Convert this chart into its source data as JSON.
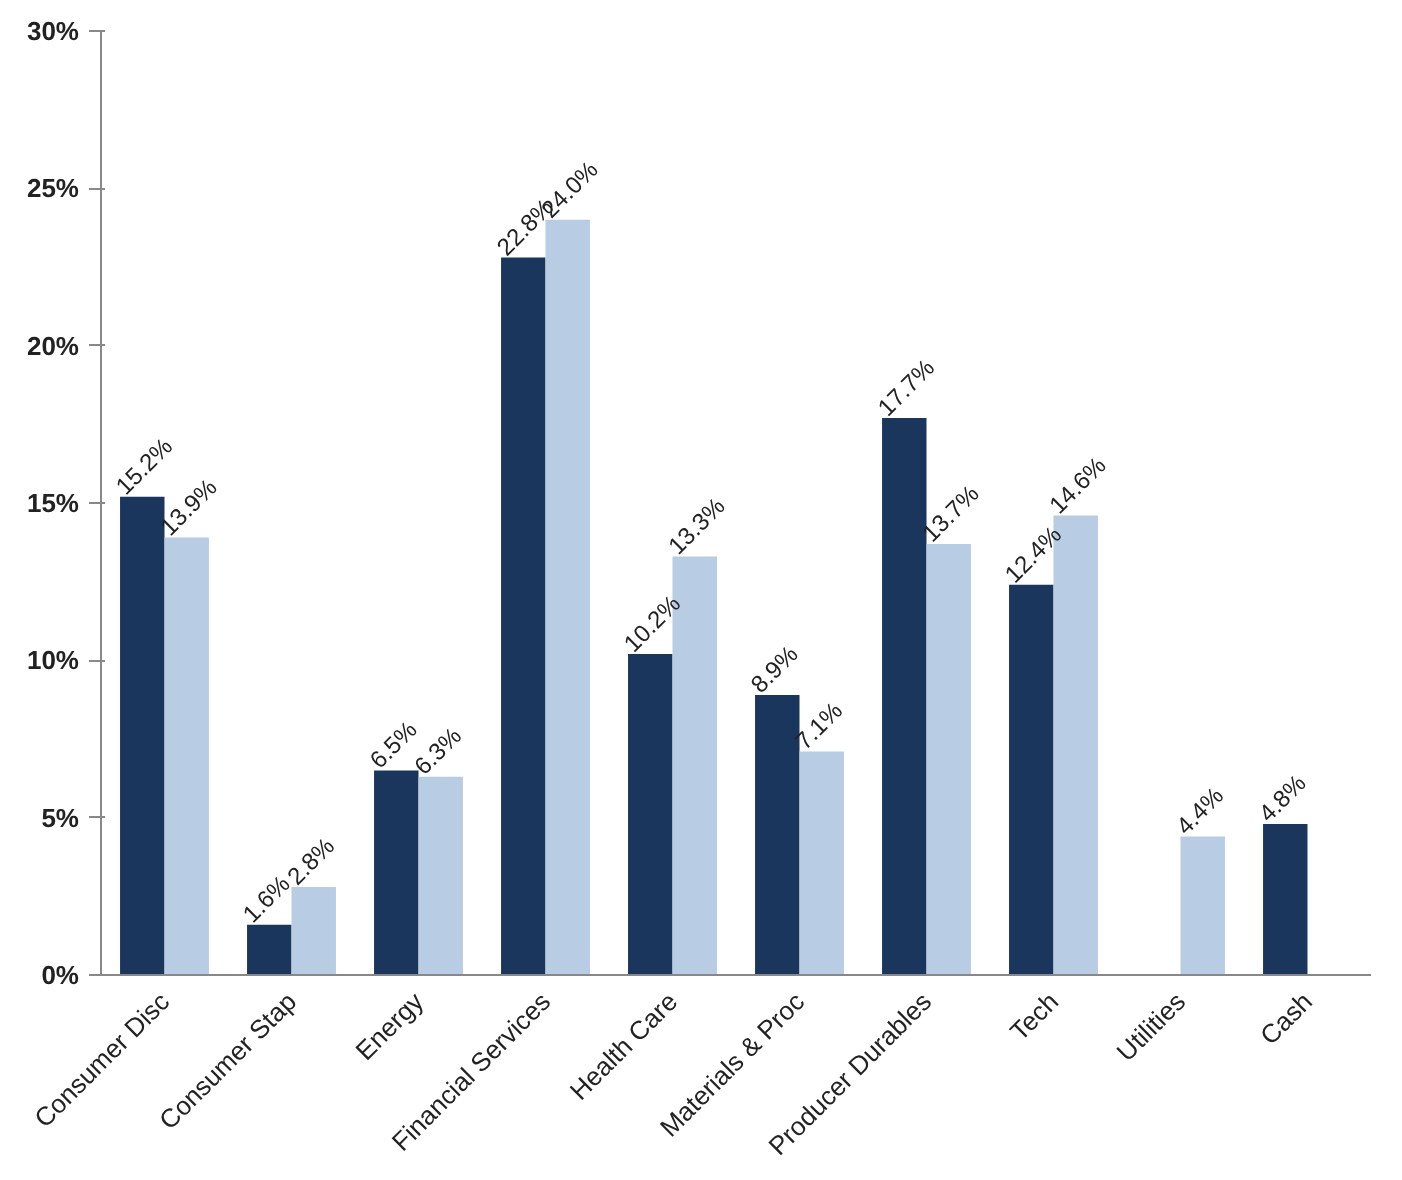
{
  "chart_data": {
    "type": "bar",
    "categories": [
      "Consumer Disc",
      "Consumer Stap",
      "Energy",
      "Financial Services",
      "Health Care",
      "Materials & Proc",
      "Producer Durables",
      "Tech",
      "Utilities",
      "Cash"
    ],
    "series": [
      {
        "color": "#1b365d",
        "values": [
          15.2,
          1.6,
          6.5,
          22.8,
          10.2,
          8.9,
          17.7,
          12.4,
          null,
          4.8
        ],
        "value_labels": [
          "15.2%",
          "1.6%",
          "6.5%",
          "22.8%",
          "10.2%",
          "8.9%",
          "17.7%",
          "12.4%",
          null,
          "4.8%"
        ]
      },
      {
        "color": "#b8cce4",
        "values": [
          13.9,
          2.8,
          6.3,
          24.0,
          13.3,
          7.1,
          13.7,
          14.6,
          4.4,
          null
        ],
        "value_labels": [
          "13.9%",
          "2.8%",
          "6.3%",
          "24.0%",
          "13.3%",
          "7.1%",
          "13.7%",
          "14.6%",
          "4.4%",
          null
        ]
      }
    ],
    "ylim": [
      0,
      30
    ],
    "yticks": [
      {
        "value": 0,
        "label": "0%"
      },
      {
        "value": 5,
        "label": "5%"
      },
      {
        "value": 10,
        "label": "10%"
      },
      {
        "value": 15,
        "label": "15%"
      },
      {
        "value": 20,
        "label": "20%"
      },
      {
        "value": 25,
        "label": "25%"
      },
      {
        "value": 30,
        "label": "30%"
      }
    ],
    "grid": false
  }
}
